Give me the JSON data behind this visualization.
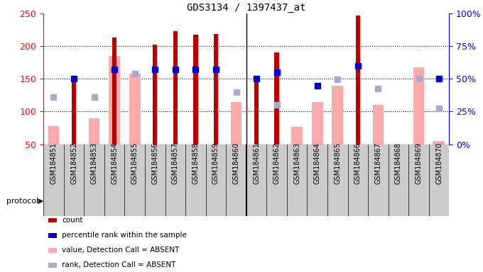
{
  "title": "GDS3134 / 1397437_at",
  "samples": [
    "GSM184851",
    "GSM184852",
    "GSM184853",
    "GSM184854",
    "GSM184855",
    "GSM184856",
    "GSM184857",
    "GSM184858",
    "GSM184859",
    "GSM184860",
    "GSM184861",
    "GSM184862",
    "GSM184863",
    "GSM184864",
    "GSM184865",
    "GSM184866",
    "GSM184867",
    "GSM184868",
    "GSM184869",
    "GSM184870"
  ],
  "count_values": [
    null,
    150,
    null,
    213,
    null,
    203,
    223,
    218,
    219,
    null,
    150,
    190,
    null,
    null,
    null,
    247,
    null,
    null,
    null,
    null
  ],
  "rank_values": [
    null,
    150,
    null,
    165,
    null,
    165,
    165,
    165,
    165,
    null,
    150,
    160,
    null,
    140,
    null,
    170,
    null,
    null,
    null,
    150
  ],
  "absent_value": [
    78,
    null,
    90,
    185,
    158,
    null,
    null,
    null,
    null,
    115,
    null,
    null,
    77,
    115,
    140,
    null,
    110,
    null,
    168,
    55
  ],
  "absent_rank": [
    122,
    null,
    122,
    null,
    158,
    null,
    null,
    null,
    null,
    130,
    null,
    110,
    null,
    null,
    149,
    null,
    135,
    null,
    150,
    105
  ],
  "sedentary_count": 10,
  "ylim_left": [
    50,
    250
  ],
  "ylim_right": [
    0,
    100
  ],
  "yticks_left": [
    50,
    100,
    150,
    200,
    250
  ],
  "yticks_right": [
    0,
    25,
    50,
    75,
    100
  ],
  "ytick_labels_right": [
    "0%",
    "25%",
    "50%",
    "75%",
    "100%"
  ],
  "count_color": "#bb0000",
  "rank_color": "#0000cc",
  "absent_value_color": "#ffaaaa",
  "absent_rank_color": "#aaaacc",
  "sedentary_color": "#aaffaa",
  "exercise_color": "#44dd44",
  "xtick_bg": "#cccccc",
  "plot_bg": "#ffffff"
}
